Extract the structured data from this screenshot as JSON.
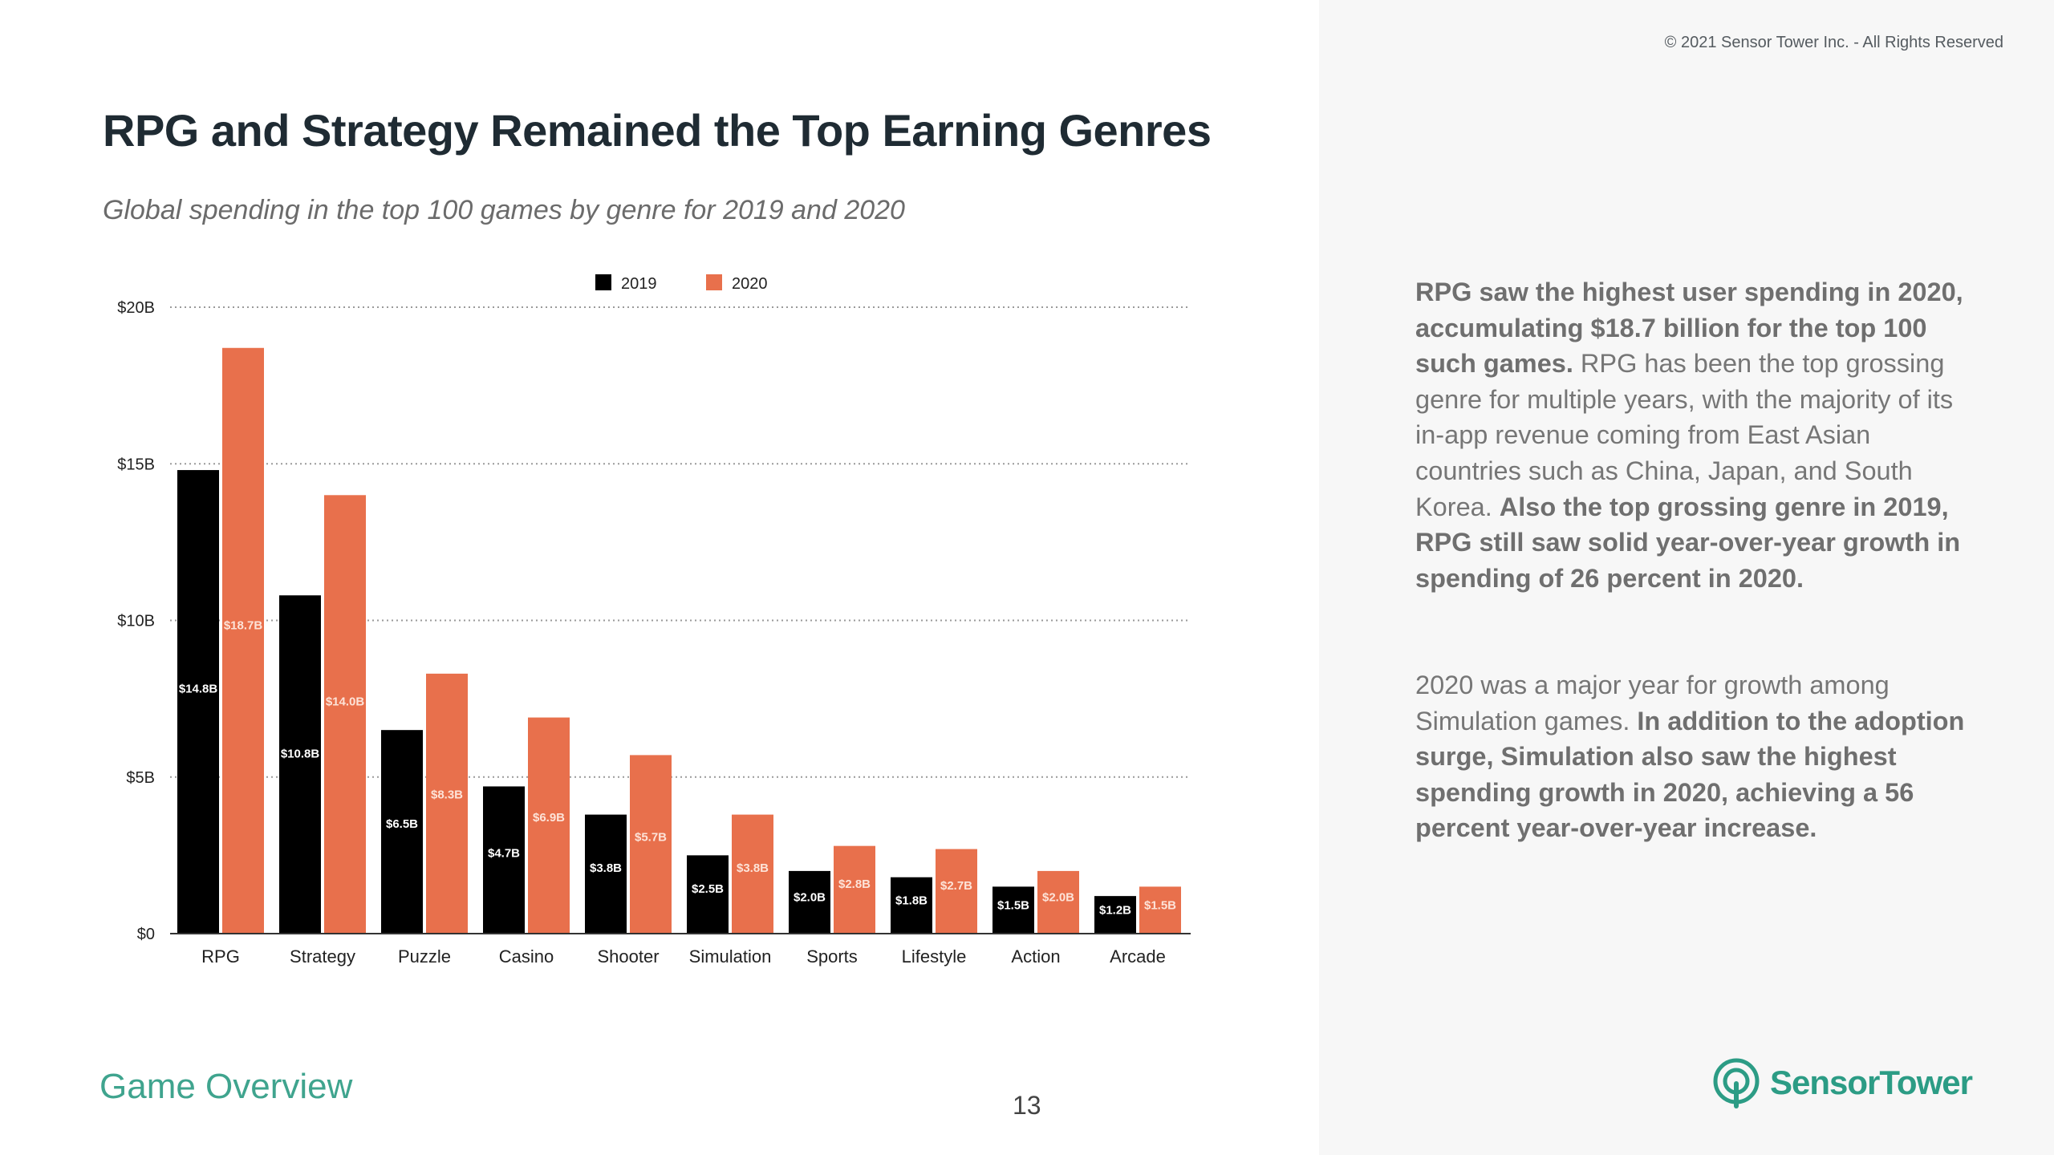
{
  "header": {
    "copyright": "© 2021 Sensor Tower Inc. - All Rights Reserved"
  },
  "slide": {
    "title": "RPG and Strategy Remained the Top Earning Genres",
    "subtitle": "Global spending in the top 100 games by genre for 2019 and 2020"
  },
  "chart_data": {
    "type": "bar",
    "categories": [
      "RPG",
      "Strategy",
      "Puzzle",
      "Casino",
      "Shooter",
      "Simulation",
      "Sports",
      "Lifestyle",
      "Action",
      "Arcade"
    ],
    "series": [
      {
        "name": "2019",
        "color": "#000000",
        "label_color": "#ffffff",
        "values": [
          14.8,
          10.8,
          6.5,
          4.7,
          3.8,
          2.5,
          2.0,
          1.8,
          1.5,
          1.2
        ],
        "labels": [
          "$14.8B",
          "$10.8B",
          "$6.5B",
          "$4.7B",
          "$3.8B",
          "$2.5B",
          "$2.0B",
          "$1.8B",
          "$1.5B",
          "$1.2B"
        ]
      },
      {
        "name": "2020",
        "color": "#e8704c",
        "label_color": "#fde3d8",
        "values": [
          18.7,
          14.0,
          8.3,
          6.9,
          5.7,
          3.8,
          2.8,
          2.7,
          2.0,
          1.5
        ],
        "labels": [
          "$18.7B",
          "$14.0B",
          "$8.3B",
          "$6.9B",
          "$5.7B",
          "$3.8B",
          "$2.8B",
          "$2.7B",
          "$2.0B",
          "$1.5B"
        ]
      }
    ],
    "y_ticks": [
      0,
      5,
      10,
      15,
      20
    ],
    "y_tick_labels": [
      "$0",
      "$5B",
      "$10B",
      "$15B",
      "$20B"
    ],
    "ylim": [
      0,
      20
    ],
    "grid": true,
    "legend_position": "top-center",
    "title": "",
    "xlabel": "",
    "ylabel": ""
  },
  "commentary": {
    "p1": {
      "bold_1": "RPG saw the highest user spending in 2020, accumulating $18.7 billion for the top 100 such games.",
      "normal_1": " RPG has been the top grossing genre for multiple years, with the majority of its in-app revenue coming from East Asian countries such as China, Japan, and South Korea. ",
      "bold_2": "Also the top grossing genre in 2019, RPG still saw solid year-over-year growth in spending of 26 percent in 2020."
    },
    "p2": {
      "normal_1": "2020 was a major year for growth among Simulation games. ",
      "bold_1": "In addition to the adoption surge, Simulation also saw the highest spending growth in 2020, achieving a 56 percent year-over-year increase."
    }
  },
  "footer": {
    "section": "Game Overview",
    "page_number": "13",
    "logo_text": "SensorTower",
    "logo_icon": "sensor-tower-logo-icon"
  },
  "colors": {
    "accent": "#3fa48e",
    "bar_2019": "#000000",
    "bar_2020": "#e8704c",
    "title": "#1f2b33",
    "panel": "#f7f7f7"
  }
}
